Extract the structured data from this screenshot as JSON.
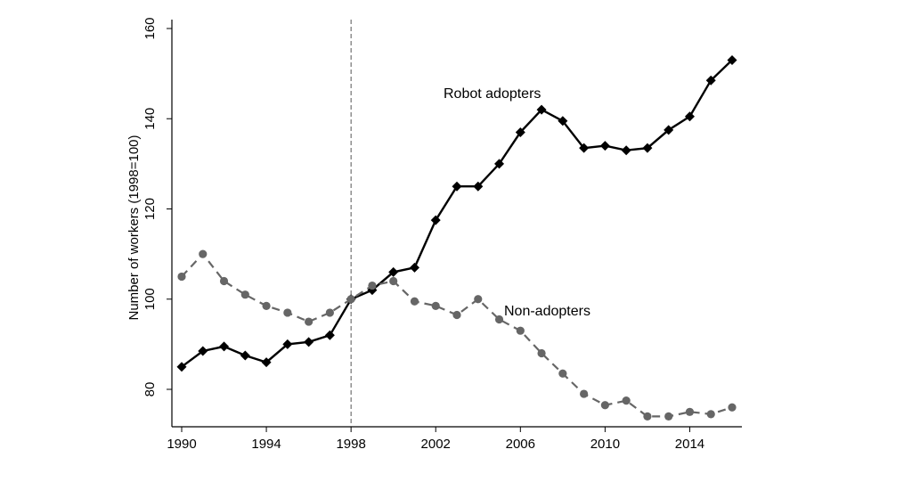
{
  "chart_data": {
    "type": "line",
    "title": "",
    "xlabel": "",
    "ylabel": "Number of workers (1998=100)",
    "xlim": [
      1990,
      2016
    ],
    "ylim": [
      72,
      162
    ],
    "x_ticks": [
      1990,
      1994,
      1998,
      2002,
      2006,
      2010,
      2014
    ],
    "x_tick_labels": [
      "1990",
      "1994",
      "1998",
      "2002",
      "2006",
      "2010",
      "2014"
    ],
    "y_ticks": [
      80,
      100,
      120,
      140,
      160
    ],
    "y_tick_labels": [
      "80",
      "100",
      "120",
      "140",
      "160"
    ],
    "reference_line_x": 1998,
    "grid": false,
    "x": [
      1990,
      1991,
      1992,
      1993,
      1994,
      1995,
      1996,
      1997,
      1998,
      1999,
      2000,
      2001,
      2002,
      2003,
      2004,
      2005,
      2006,
      2007,
      2008,
      2009,
      2010,
      2011,
      2012,
      2013,
      2014,
      2015,
      2016
    ],
    "series": [
      {
        "name": "Robot adopters",
        "color": "#000000",
        "line_style": "solid",
        "marker": "diamond",
        "values": [
          85,
          88.5,
          89.5,
          87.5,
          86,
          90,
          90.5,
          92,
          100,
          102,
          106,
          107,
          117.5,
          125,
          125,
          130,
          137,
          142,
          139.5,
          133.5,
          134,
          133,
          133.5,
          137.5,
          140.5,
          148.5,
          153
        ]
      },
      {
        "name": "Non-adopters",
        "color": "#666666",
        "line_style": "dashed",
        "marker": "circle",
        "values": [
          105,
          110,
          104,
          101,
          98.5,
          97,
          95,
          97,
          100,
          103,
          104,
          99.5,
          98.5,
          96.5,
          100,
          95.5,
          93,
          88,
          83.5,
          79,
          76.5,
          77.5,
          74,
          74,
          75,
          74.5,
          76
        ]
      }
    ]
  }
}
